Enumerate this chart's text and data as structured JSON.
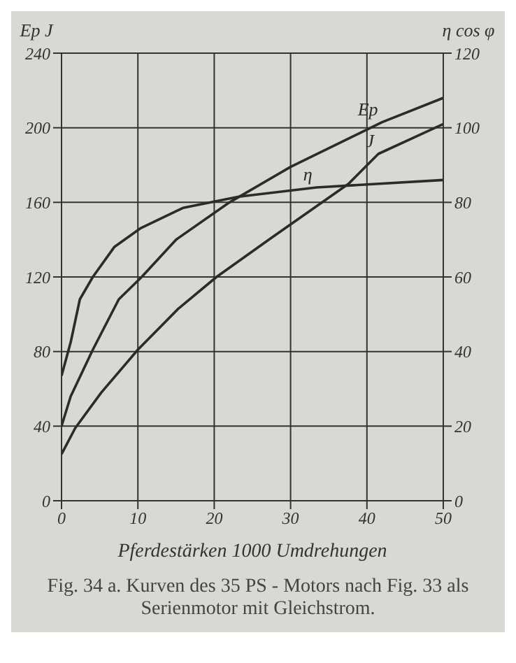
{
  "chart_data": {
    "type": "line",
    "xlabel": "Pferdestärken   1000 Umdrehungen",
    "ylabel": "Ep J",
    "y2label": "η cos φ",
    "annotations": [
      "Fig. 34 a.  Kurven des 35 PS - Motors nach Fig. 33 als Serienmotor mit Gleichstrom."
    ],
    "series": [
      {
        "name": "Ep",
        "color": "#2b2b2b",
        "x": [
          0,
          1.2,
          4.1,
          7.5,
          10.5,
          15,
          22,
          30,
          42,
          50
        ],
        "values": [
          40,
          56,
          81,
          108,
          120,
          140,
          160,
          179,
          203,
          216
        ]
      },
      {
        "name": "J",
        "color": "#2b2b2b",
        "x": [
          0,
          1.8,
          5.2,
          10,
          15.3,
          20.3,
          27.5,
          37.6,
          41.5,
          50
        ],
        "values": [
          25,
          39,
          58,
          81,
          103,
          120,
          141,
          170,
          186,
          202
        ]
      },
      {
        "name": "η",
        "color": "#2b2b2b",
        "axis": "y2",
        "x": [
          0,
          1.2,
          2.4,
          4.1,
          6.9,
          10.3,
          15.9,
          23.2,
          33.4,
          50
        ],
        "values": [
          33.5,
          42.5,
          54,
          60,
          68,
          73,
          78.5,
          81.5,
          84,
          86
        ]
      }
    ],
    "xlim": [
      0,
      50
    ],
    "xticks": [
      0,
      10,
      20,
      30,
      40,
      50
    ],
    "ylim": [
      0,
      240
    ],
    "yticks": [
      0,
      40,
      80,
      120,
      160,
      200,
      240
    ],
    "y2lim": [
      0,
      120
    ],
    "y2ticks": [
      0,
      20,
      40,
      60,
      80,
      100,
      120
    ],
    "grid": true,
    "legend": false,
    "marker": "none",
    "line_style": "solid"
  }
}
